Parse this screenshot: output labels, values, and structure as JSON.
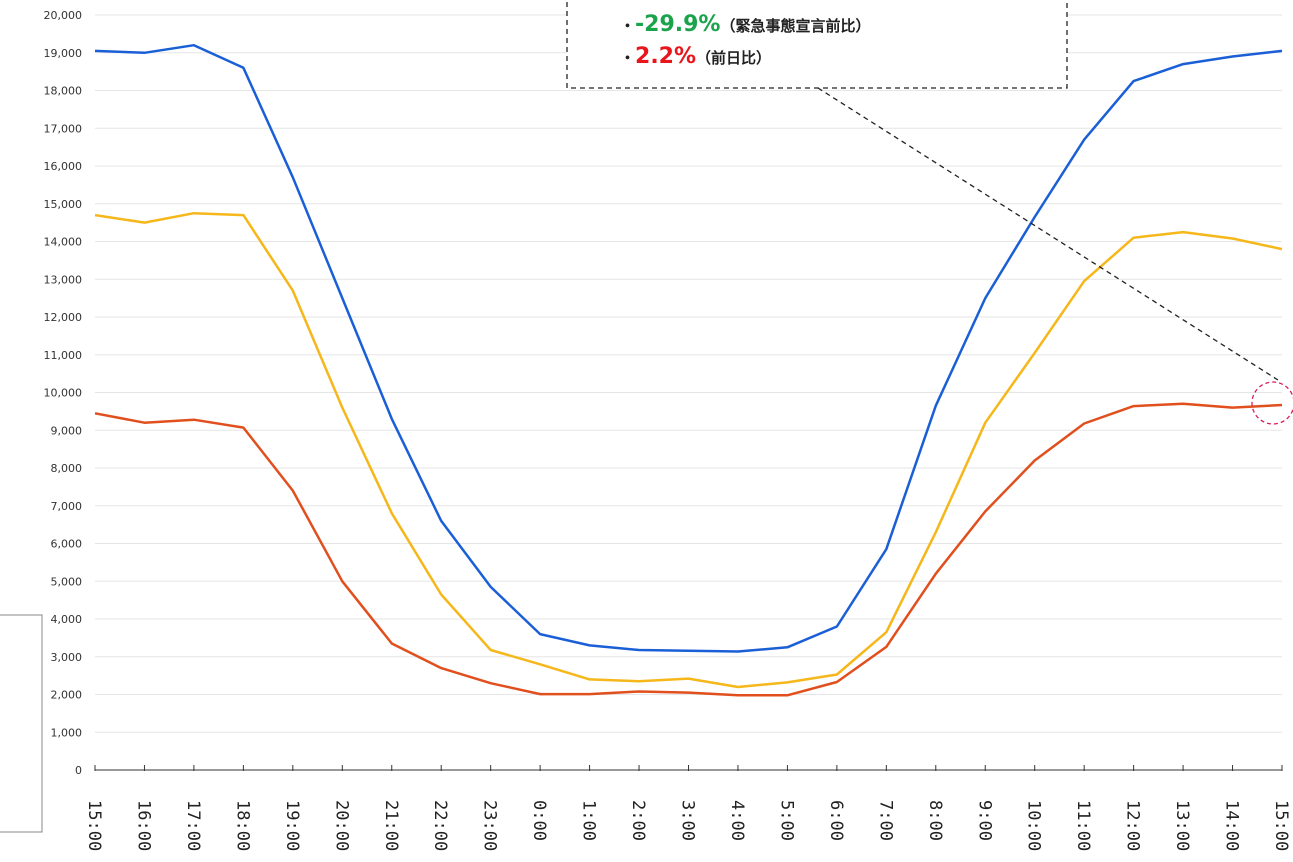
{
  "chart_data": {
    "type": "line",
    "title": "",
    "xlabel": "",
    "ylabel": "",
    "ylim": [
      0,
      20000
    ],
    "ytick_step": 1000,
    "grid": true,
    "x": [
      "15:00",
      "16:00",
      "17:00",
      "18:00",
      "19:00",
      "20:00",
      "21:00",
      "22:00",
      "23:00",
      "0:00",
      "1:00",
      "2:00",
      "3:00",
      "4:00",
      "5:00",
      "6:00",
      "7:00",
      "8:00",
      "9:00",
      "10:00",
      "11:00",
      "12:00",
      "13:00",
      "14:00",
      "15:00"
    ],
    "series": [
      {
        "color": "#1a5fd6",
        "values": [
          19050,
          19000,
          19200,
          18600,
          15700,
          12500,
          9300,
          6600,
          4850,
          3600,
          3300,
          3180,
          3160,
          3140,
          3250,
          3800,
          5850,
          9650,
          12500,
          14650,
          16700,
          18250,
          18700,
          18900,
          19050
        ]
      },
      {
        "color": "#f5b71a",
        "values": [
          14700,
          14500,
          14750,
          14700,
          12700,
          9600,
          6800,
          4650,
          3180,
          2800,
          2400,
          2350,
          2420,
          2200,
          2320,
          2530,
          3650,
          6300,
          9200,
          11050,
          12950,
          14100,
          14250,
          14080,
          13800
        ]
      },
      {
        "color": "#e04f1d",
        "values": [
          9450,
          9200,
          9280,
          9070,
          7400,
          5000,
          3350,
          2700,
          2300,
          2010,
          2010,
          2080,
          2050,
          1980,
          1980,
          2330,
          3260,
          5200,
          6850,
          8200,
          9180,
          9640,
          9700,
          9600,
          9670
        ]
      }
    ],
    "annotations": [
      {
        "text": "-29.9%",
        "suffix": "（緊急事態宣言前比）",
        "color": "#1aa34a"
      },
      {
        "text": "2.2%",
        "suffix": "（前日比）",
        "color": "#e8151b"
      }
    ],
    "annotation_bullet": "・",
    "highlight_color": "#d81b60"
  }
}
